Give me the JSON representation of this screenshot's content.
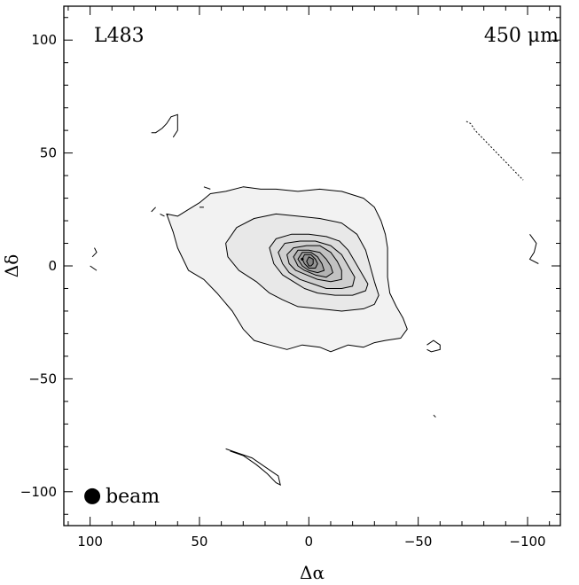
{
  "chart_data": {
    "type": "contour",
    "source_label": "L483",
    "wavelength_label": "450 μm",
    "xlabel": "Δα",
    "ylabel": "Δδ",
    "xlim": [
      112,
      -115
    ],
    "ylim": [
      -115,
      115
    ],
    "x_reversed": true,
    "xticks": [
      100,
      50,
      0,
      -50,
      -100
    ],
    "xtick_labels": [
      "100",
      "50",
      "0",
      "−50",
      "−100"
    ],
    "yticks": [
      100,
      50,
      0,
      -50,
      -100
    ],
    "ytick_labels": [
      "100",
      "50",
      "0",
      "−50",
      "−100"
    ],
    "beam_label": "beam",
    "peak": [
      3,
      3
    ],
    "contours": [
      {
        "level": 1,
        "shade": "#f2f2f2",
        "points": [
          [
            65,
            23
          ],
          [
            60,
            22
          ],
          [
            55,
            25
          ],
          [
            50,
            28
          ],
          [
            45,
            32
          ],
          [
            38,
            33
          ],
          [
            30,
            35
          ],
          [
            22,
            34
          ],
          [
            15,
            34
          ],
          [
            5,
            33
          ],
          [
            -5,
            34
          ],
          [
            -15,
            33
          ],
          [
            -25,
            30
          ],
          [
            -30,
            26
          ],
          [
            -33,
            20
          ],
          [
            -35,
            14
          ],
          [
            -36,
            8
          ],
          [
            -36,
            2
          ],
          [
            -36,
            -5
          ],
          [
            -37,
            -12
          ],
          [
            -40,
            -18
          ],
          [
            -43,
            -23
          ],
          [
            -45,
            -28
          ],
          [
            -42,
            -32
          ],
          [
            -35,
            -33
          ],
          [
            -30,
            -34
          ],
          [
            -25,
            -36
          ],
          [
            -18,
            -35
          ],
          [
            -10,
            -38
          ],
          [
            -5,
            -36
          ],
          [
            3,
            -35
          ],
          [
            10,
            -37
          ],
          [
            18,
            -35
          ],
          [
            25,
            -33
          ],
          [
            30,
            -28
          ],
          [
            35,
            -20
          ],
          [
            42,
            -12
          ],
          [
            48,
            -6
          ],
          [
            55,
            -2
          ],
          [
            60,
            8
          ],
          [
            62,
            15
          ]
        ]
      },
      {
        "level": 2,
        "shade": "#e8e8e8",
        "points": [
          [
            38,
            10
          ],
          [
            33,
            17
          ],
          [
            25,
            21
          ],
          [
            15,
            23
          ],
          [
            5,
            22
          ],
          [
            -5,
            21
          ],
          [
            -15,
            19
          ],
          [
            -22,
            14
          ],
          [
            -26,
            7
          ],
          [
            -28,
            0
          ],
          [
            -30,
            -7
          ],
          [
            -32,
            -13
          ],
          [
            -30,
            -17
          ],
          [
            -25,
            -19
          ],
          [
            -15,
            -20
          ],
          [
            -5,
            -19
          ],
          [
            5,
            -18
          ],
          [
            12,
            -15
          ],
          [
            18,
            -12
          ],
          [
            24,
            -7
          ],
          [
            32,
            -2
          ],
          [
            37,
            4
          ]
        ]
      },
      {
        "level": 3,
        "shade": "#dcdcdc",
        "points": [
          [
            18,
            8
          ],
          [
            15,
            12
          ],
          [
            8,
            14
          ],
          [
            0,
            14
          ],
          [
            -8,
            13
          ],
          [
            -14,
            11
          ],
          [
            -18,
            7
          ],
          [
            -21,
            2
          ],
          [
            -24,
            -3
          ],
          [
            -27,
            -8
          ],
          [
            -26,
            -11
          ],
          [
            -20,
            -13
          ],
          [
            -12,
            -13
          ],
          [
            -4,
            -12
          ],
          [
            2,
            -10
          ],
          [
            7,
            -7
          ],
          [
            12,
            -4
          ],
          [
            16,
            1
          ]
        ]
      },
      {
        "level": 4,
        "shade": "#cfcfcf",
        "points": [
          [
            14,
            6
          ],
          [
            11,
            10
          ],
          [
            4,
            11
          ],
          [
            -3,
            11
          ],
          [
            -10,
            9
          ],
          [
            -15,
            5
          ],
          [
            -18,
            0
          ],
          [
            -21,
            -5
          ],
          [
            -20,
            -9
          ],
          [
            -15,
            -10
          ],
          [
            -8,
            -10
          ],
          [
            -2,
            -8
          ],
          [
            4,
            -6
          ],
          [
            9,
            -3
          ],
          [
            12,
            1
          ]
        ]
      },
      {
        "level": 5,
        "shade": "#c1c1c1",
        "points": [
          [
            10,
            5
          ],
          [
            7,
            8
          ],
          [
            1,
            9
          ],
          [
            -5,
            9
          ],
          [
            -10,
            6
          ],
          [
            -13,
            2
          ],
          [
            -15,
            -2
          ],
          [
            -15,
            -6
          ],
          [
            -10,
            -7
          ],
          [
            -4,
            -6
          ],
          [
            1,
            -4
          ],
          [
            6,
            -2
          ],
          [
            9,
            1
          ]
        ]
      },
      {
        "level": 6,
        "shade": "#b3b3b3",
        "points": [
          [
            7,
            4
          ],
          [
            5,
            7
          ],
          [
            0,
            7
          ],
          [
            -5,
            6
          ],
          [
            -8,
            3
          ],
          [
            -10,
            0
          ],
          [
            -11,
            -3
          ],
          [
            -8,
            -5
          ],
          [
            -3,
            -4
          ],
          [
            2,
            -2
          ],
          [
            5,
            0
          ]
        ]
      },
      {
        "level": 7,
        "shade": "#a4a4a4",
        "points": [
          [
            5,
            3
          ],
          [
            3,
            6
          ],
          [
            -1,
            6
          ],
          [
            -4,
            4
          ],
          [
            -6,
            1
          ],
          [
            -7,
            -2
          ],
          [
            -4,
            -3
          ],
          [
            0,
            -2
          ],
          [
            3,
            0
          ]
        ]
      },
      {
        "level": 8,
        "shade": "#959595",
        "points": [
          [
            3,
            3
          ],
          [
            2,
            5
          ],
          [
            -1,
            5
          ],
          [
            -3,
            3
          ],
          [
            -4,
            1
          ],
          [
            -3,
            -1
          ],
          [
            0,
            -1
          ],
          [
            2,
            1
          ]
        ]
      },
      {
        "level": 9,
        "shade": "#858585",
        "points": [
          [
            1,
            2
          ],
          [
            0,
            4
          ],
          [
            -2,
            3
          ],
          [
            -2,
            1
          ],
          [
            -1,
            0
          ],
          [
            0,
            0
          ]
        ]
      }
    ],
    "fragments": [
      [
        [
          62,
          57
        ],
        [
          60,
          60
        ],
        [
          60,
          67
        ],
        [
          63,
          66
        ],
        [
          65,
          63
        ],
        [
          67,
          61
        ],
        [
          70,
          59
        ],
        [
          72,
          59
        ]
      ],
      [
        [
          -72,
          64
        ],
        [
          -74,
          63
        ],
        [
          -76,
          60
        ],
        [
          -80,
          56
        ],
        [
          -84,
          52
        ],
        [
          -88,
          48
        ],
        [
          -92,
          44
        ],
        [
          -96,
          40
        ],
        [
          -98,
          38
        ]
      ],
      [
        [
          -101,
          14
        ],
        [
          -104,
          10
        ],
        [
          -103,
          6
        ],
        [
          -101,
          3
        ],
        [
          -105,
          1
        ]
      ],
      [
        [
          -54,
          -35
        ],
        [
          -57,
          -33
        ],
        [
          -60,
          -35
        ],
        [
          -60,
          -37
        ],
        [
          -56,
          -38
        ],
        [
          -54,
          -37
        ]
      ],
      [
        [
          98,
          8
        ],
        [
          97,
          6
        ],
        [
          99,
          4
        ]
      ],
      [
        [
          100,
          0
        ],
        [
          97,
          -2
        ]
      ],
      [
        [
          72,
          24
        ],
        [
          70,
          26
        ]
      ],
      [
        [
          68,
          23
        ],
        [
          66,
          22
        ]
      ],
      [
        [
          48,
          35
        ],
        [
          45,
          34
        ]
      ],
      [
        [
          50,
          26
        ],
        [
          48,
          26
        ]
      ],
      [
        [
          38,
          -81
        ],
        [
          32,
          -83
        ],
        [
          26,
          -85
        ],
        [
          20,
          -89
        ],
        [
          14,
          -93
        ],
        [
          13,
          -97
        ],
        [
          15,
          -96
        ],
        [
          19,
          -92
        ],
        [
          24,
          -88
        ],
        [
          30,
          -84
        ],
        [
          36,
          -82
        ]
      ],
      [
        [
          -57,
          -66
        ],
        [
          -58,
          -67
        ]
      ]
    ],
    "beam": {
      "x": 99,
      "y": -102
    }
  }
}
